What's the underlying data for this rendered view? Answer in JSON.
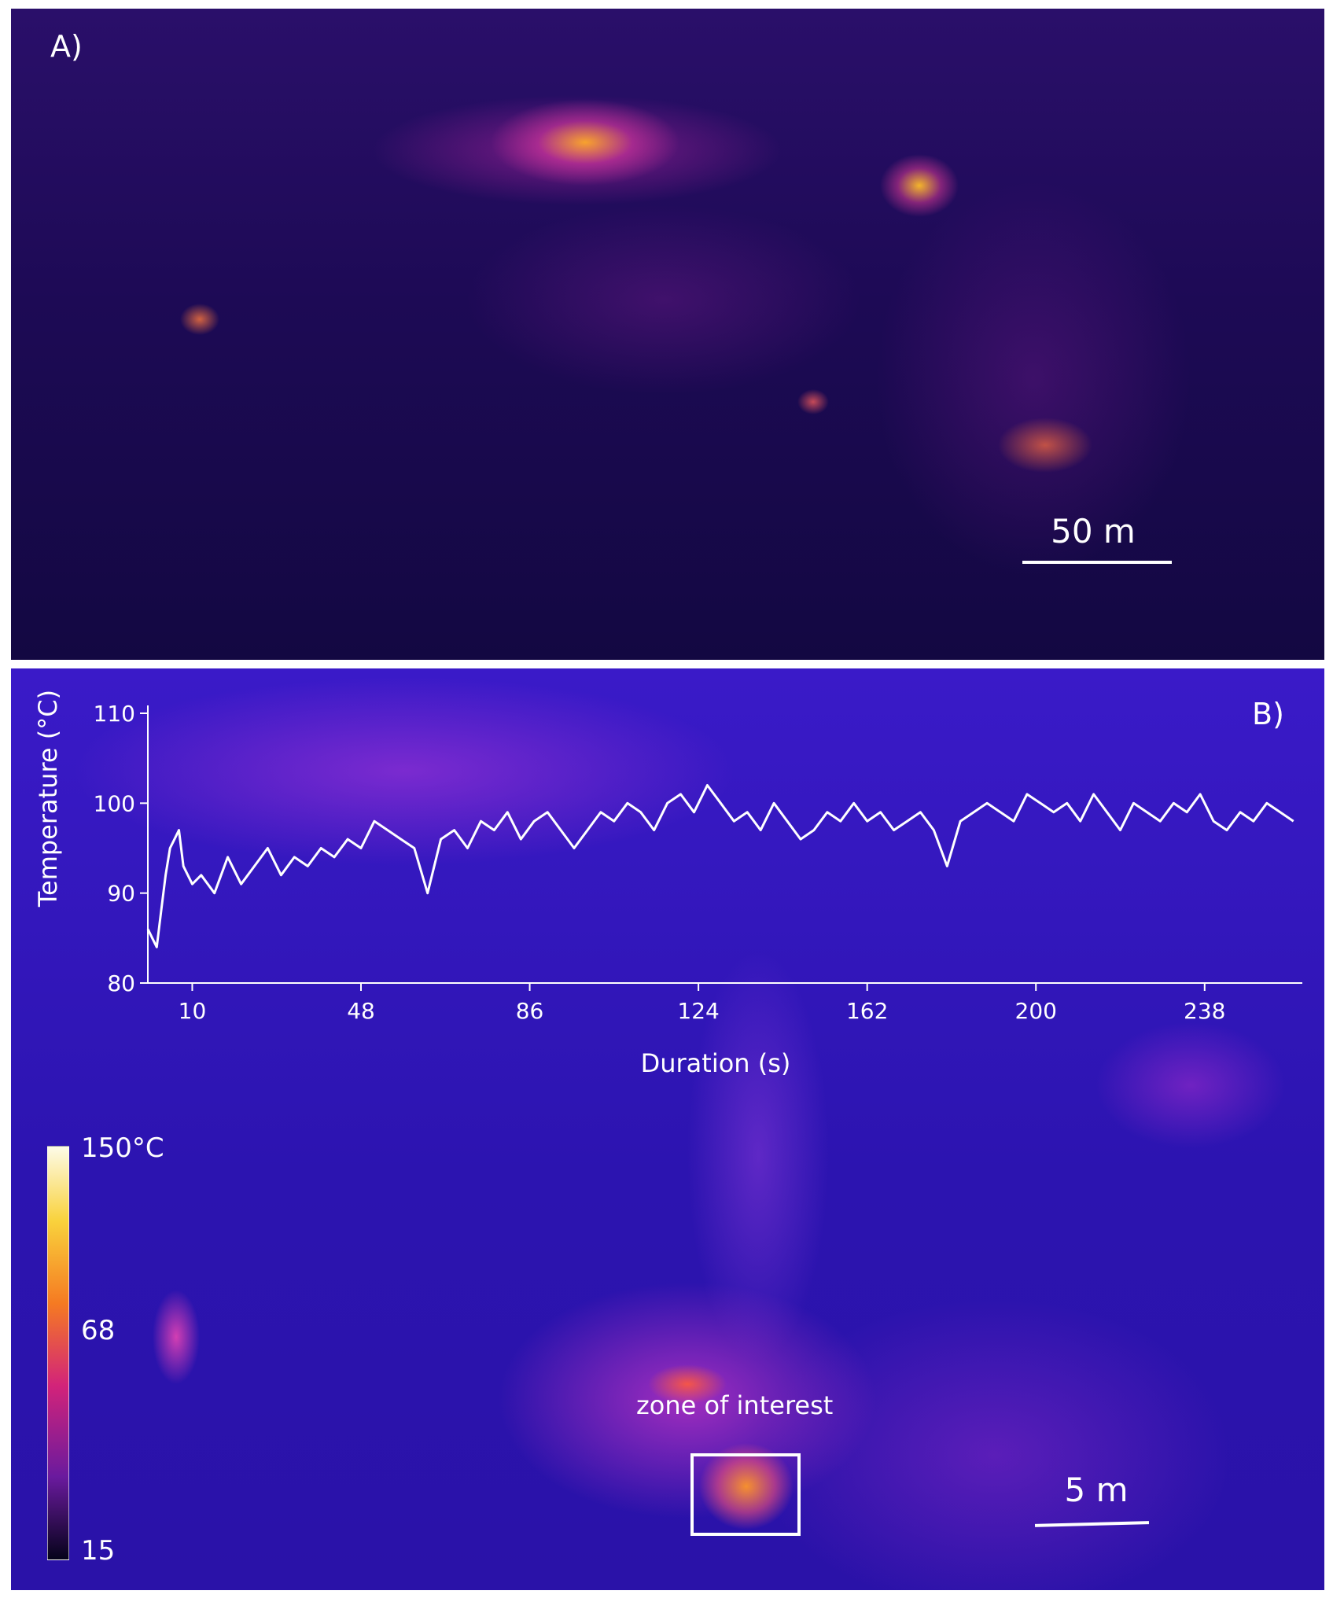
{
  "panel_a": {
    "letter": "A)",
    "scale_bar_label": "50 m"
  },
  "panel_b": {
    "letter": "B)",
    "scale_bar_label": "5 m",
    "zone_label": "zone of interest",
    "colorbar": {
      "max_label": "150°C",
      "mid_label": "68",
      "min_label": "15"
    }
  },
  "chart_data": {
    "type": "line",
    "title": "",
    "xlabel": "Duration (s)",
    "ylabel": "Temperature (°C)",
    "xlim": [
      0,
      260
    ],
    "ylim": [
      80,
      110
    ],
    "xticks": [
      10,
      48,
      86,
      124,
      162,
      200,
      238
    ],
    "yticks": [
      80,
      90,
      100,
      110
    ],
    "grid": false,
    "series": [
      {
        "name": "",
        "color": "#ffffff",
        "x": [
          0,
          1,
          2,
          3,
          4,
          5,
          6,
          7,
          8,
          10,
          12,
          15,
          18,
          21,
          24,
          27,
          30,
          33,
          36,
          39,
          42,
          45,
          48,
          51,
          54,
          57,
          60,
          63,
          66,
          69,
          72,
          75,
          78,
          81,
          84,
          87,
          90,
          93,
          96,
          99,
          102,
          105,
          108,
          111,
          114,
          117,
          120,
          123,
          126,
          129,
          132,
          135,
          138,
          141,
          144,
          147,
          150,
          153,
          156,
          159,
          162,
          165,
          168,
          171,
          174,
          177,
          180,
          183,
          186,
          189,
          192,
          195,
          198,
          201,
          204,
          207,
          210,
          213,
          216,
          219,
          222,
          225,
          228,
          231,
          234,
          237,
          240,
          243,
          246,
          249,
          252,
          255,
          258
        ],
        "values": [
          86,
          85,
          84,
          88,
          92,
          95,
          96,
          97,
          93,
          91,
          92,
          90,
          94,
          91,
          93,
          95,
          92,
          94,
          93,
          95,
          94,
          96,
          95,
          98,
          97,
          96,
          95,
          90,
          96,
          97,
          95,
          98,
          97,
          99,
          96,
          98,
          99,
          97,
          95,
          97,
          99,
          98,
          100,
          99,
          97,
          100,
          101,
          99,
          102,
          100,
          98,
          99,
          97,
          100,
          98,
          96,
          97,
          99,
          98,
          100,
          98,
          99,
          97,
          98,
          99,
          97,
          93,
          98,
          99,
          100,
          99,
          98,
          101,
          100,
          99,
          100,
          98,
          101,
          99,
          97,
          100,
          99,
          98,
          100,
          99,
          101,
          98,
          97,
          99,
          98,
          100,
          99,
          98
        ]
      }
    ]
  }
}
